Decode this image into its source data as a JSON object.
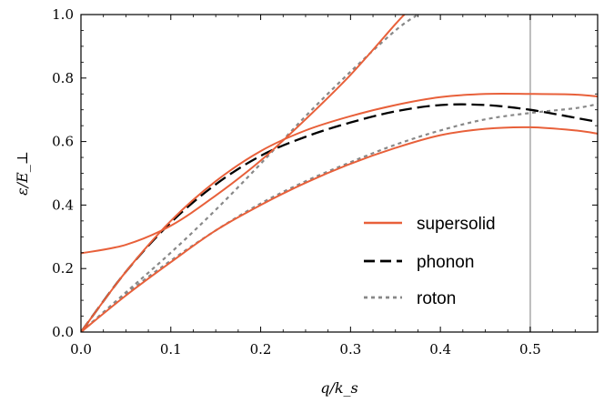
{
  "chart_data": {
    "type": "line",
    "xlabel": "q/k_s",
    "ylabel": "ε/E_⊥",
    "xlim": [
      0.0,
      0.575
    ],
    "ylim": [
      0.0,
      1.0
    ],
    "x_ticks": [
      {
        "value": 0.0,
        "label": "0.0"
      },
      {
        "value": 0.1,
        "label": "0.1"
      },
      {
        "value": 0.2,
        "label": "0.2"
      },
      {
        "value": 0.3,
        "label": "0.3"
      },
      {
        "value": 0.4,
        "label": "0.4"
      },
      {
        "value": 0.5,
        "label": "0.5"
      }
    ],
    "y_ticks": [
      {
        "value": 0.0,
        "label": "0.0"
      },
      {
        "value": 0.2,
        "label": "0.2"
      },
      {
        "value": 0.4,
        "label": "0.4"
      },
      {
        "value": 0.6,
        "label": "0.6"
      },
      {
        "value": 0.8,
        "label": "0.8"
      },
      {
        "value": 1.0,
        "label": "1.0"
      }
    ],
    "vertical_line_x": 0.5,
    "legend": {
      "placement": "lower-right",
      "entries": [
        {
          "label": "supersolid",
          "style": "solid",
          "color": "#e8603a"
        },
        {
          "label": "phonon",
          "style": "dashed",
          "color": "#000000"
        },
        {
          "label": "roton",
          "style": "dotted",
          "color": "#888888"
        }
      ]
    },
    "series": [
      {
        "legend": "supersolid",
        "style": "solid",
        "color": "#e8603a",
        "x": [
          0,
          0.05,
          0.1,
          0.15,
          0.2,
          0.25,
          0.3,
          0.35,
          0.36
        ],
        "y": [
          0.248,
          0.275,
          0.335,
          0.43,
          0.54,
          0.67,
          0.81,
          0.97,
          1.0
        ]
      },
      {
        "legend": "supersolid",
        "style": "solid",
        "color": "#e8603a",
        "x": [
          0,
          0.05,
          0.1,
          0.15,
          0.2,
          0.25,
          0.3,
          0.35,
          0.4,
          0.45,
          0.5,
          0.55,
          0.575
        ],
        "y": [
          0.0,
          0.19,
          0.35,
          0.475,
          0.57,
          0.635,
          0.68,
          0.715,
          0.74,
          0.75,
          0.75,
          0.748,
          0.742
        ]
      },
      {
        "legend": "supersolid",
        "style": "solid",
        "color": "#e8603a",
        "x": [
          0,
          0.05,
          0.1,
          0.15,
          0.2,
          0.25,
          0.3,
          0.35,
          0.4,
          0.45,
          0.5,
          0.55,
          0.575
        ],
        "y": [
          0.0,
          0.115,
          0.22,
          0.32,
          0.4,
          0.47,
          0.53,
          0.58,
          0.62,
          0.64,
          0.645,
          0.635,
          0.625
        ]
      },
      {
        "legend": "phonon",
        "style": "dashed",
        "color": "#000000",
        "x": [
          0,
          0.05,
          0.1,
          0.15,
          0.2,
          0.25,
          0.3,
          0.35,
          0.4,
          0.45,
          0.5,
          0.55,
          0.575
        ],
        "y": [
          0.0,
          0.19,
          0.345,
          0.465,
          0.555,
          0.615,
          0.66,
          0.695,
          0.715,
          0.715,
          0.7,
          0.675,
          0.662
        ]
      },
      {
        "legend": "roton",
        "style": "dotted",
        "color": "#888888",
        "x": [
          0,
          0.05,
          0.1,
          0.15,
          0.2,
          0.25,
          0.3,
          0.35,
          0.375
        ],
        "y": [
          0.0,
          0.125,
          0.25,
          0.385,
          0.53,
          0.68,
          0.82,
          0.95,
          1.0
        ]
      },
      {
        "legend": "roton",
        "style": "dotted",
        "color": "#888888",
        "x": [
          0,
          0.05,
          0.1,
          0.15,
          0.2,
          0.25,
          0.3,
          0.35,
          0.4,
          0.45,
          0.5,
          0.55,
          0.575
        ],
        "y": [
          0.0,
          0.12,
          0.225,
          0.32,
          0.405,
          0.475,
          0.535,
          0.59,
          0.635,
          0.67,
          0.69,
          0.705,
          0.718
        ]
      }
    ]
  }
}
